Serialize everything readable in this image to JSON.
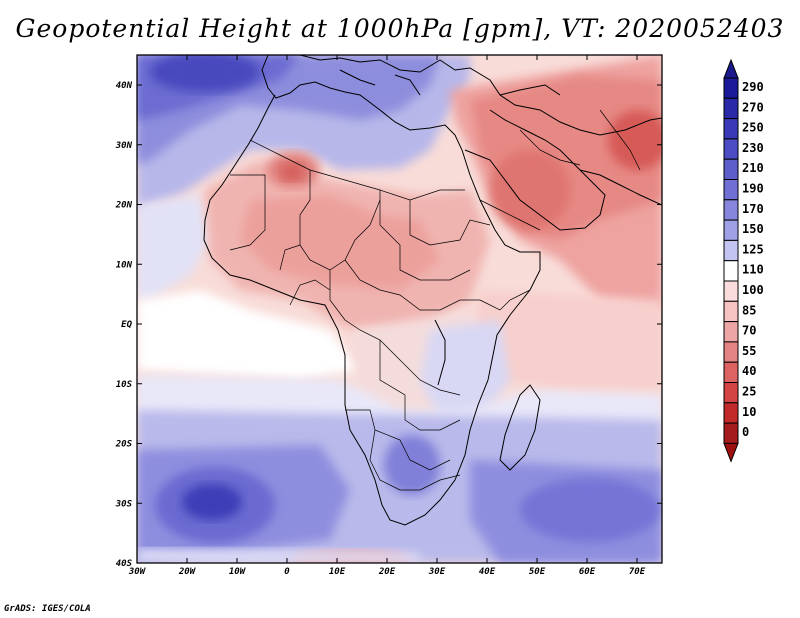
{
  "title": "Geopotential Height at 1000hPa [gpm], VT: 2020052403",
  "credit": "GrADS: IGES/COLA",
  "map": {
    "lat_ticks": [
      "40N",
      "30N",
      "20N",
      "10N",
      "EQ",
      "10S",
      "20S",
      "30S",
      "40S"
    ],
    "lon_ticks": [
      "30W",
      "20W",
      "10W",
      "0",
      "10E",
      "20E",
      "30E",
      "40E",
      "50E",
      "60E",
      "70E"
    ]
  },
  "colorbar": {
    "levels": [
      "290",
      "270",
      "250",
      "230",
      "210",
      "190",
      "170",
      "150",
      "125",
      "110",
      "100",
      "85",
      "70",
      "55",
      "40",
      "25",
      "10",
      "0"
    ],
    "colors": [
      "#1a1a9a",
      "#2a2aa8",
      "#3a3ab8",
      "#4c4cc4",
      "#5d5dcc",
      "#7070d4",
      "#8686dc",
      "#a0a0e6",
      "#c4c4f0",
      "#ffffff",
      "#fbdcdc",
      "#f6c2c2",
      "#eea5a5",
      "#e58484",
      "#dd6262",
      "#d34444",
      "#c22a2a",
      "#a51c1c"
    ],
    "top_color": "#1a1a8c",
    "bottom_color": "#9e1010"
  }
}
